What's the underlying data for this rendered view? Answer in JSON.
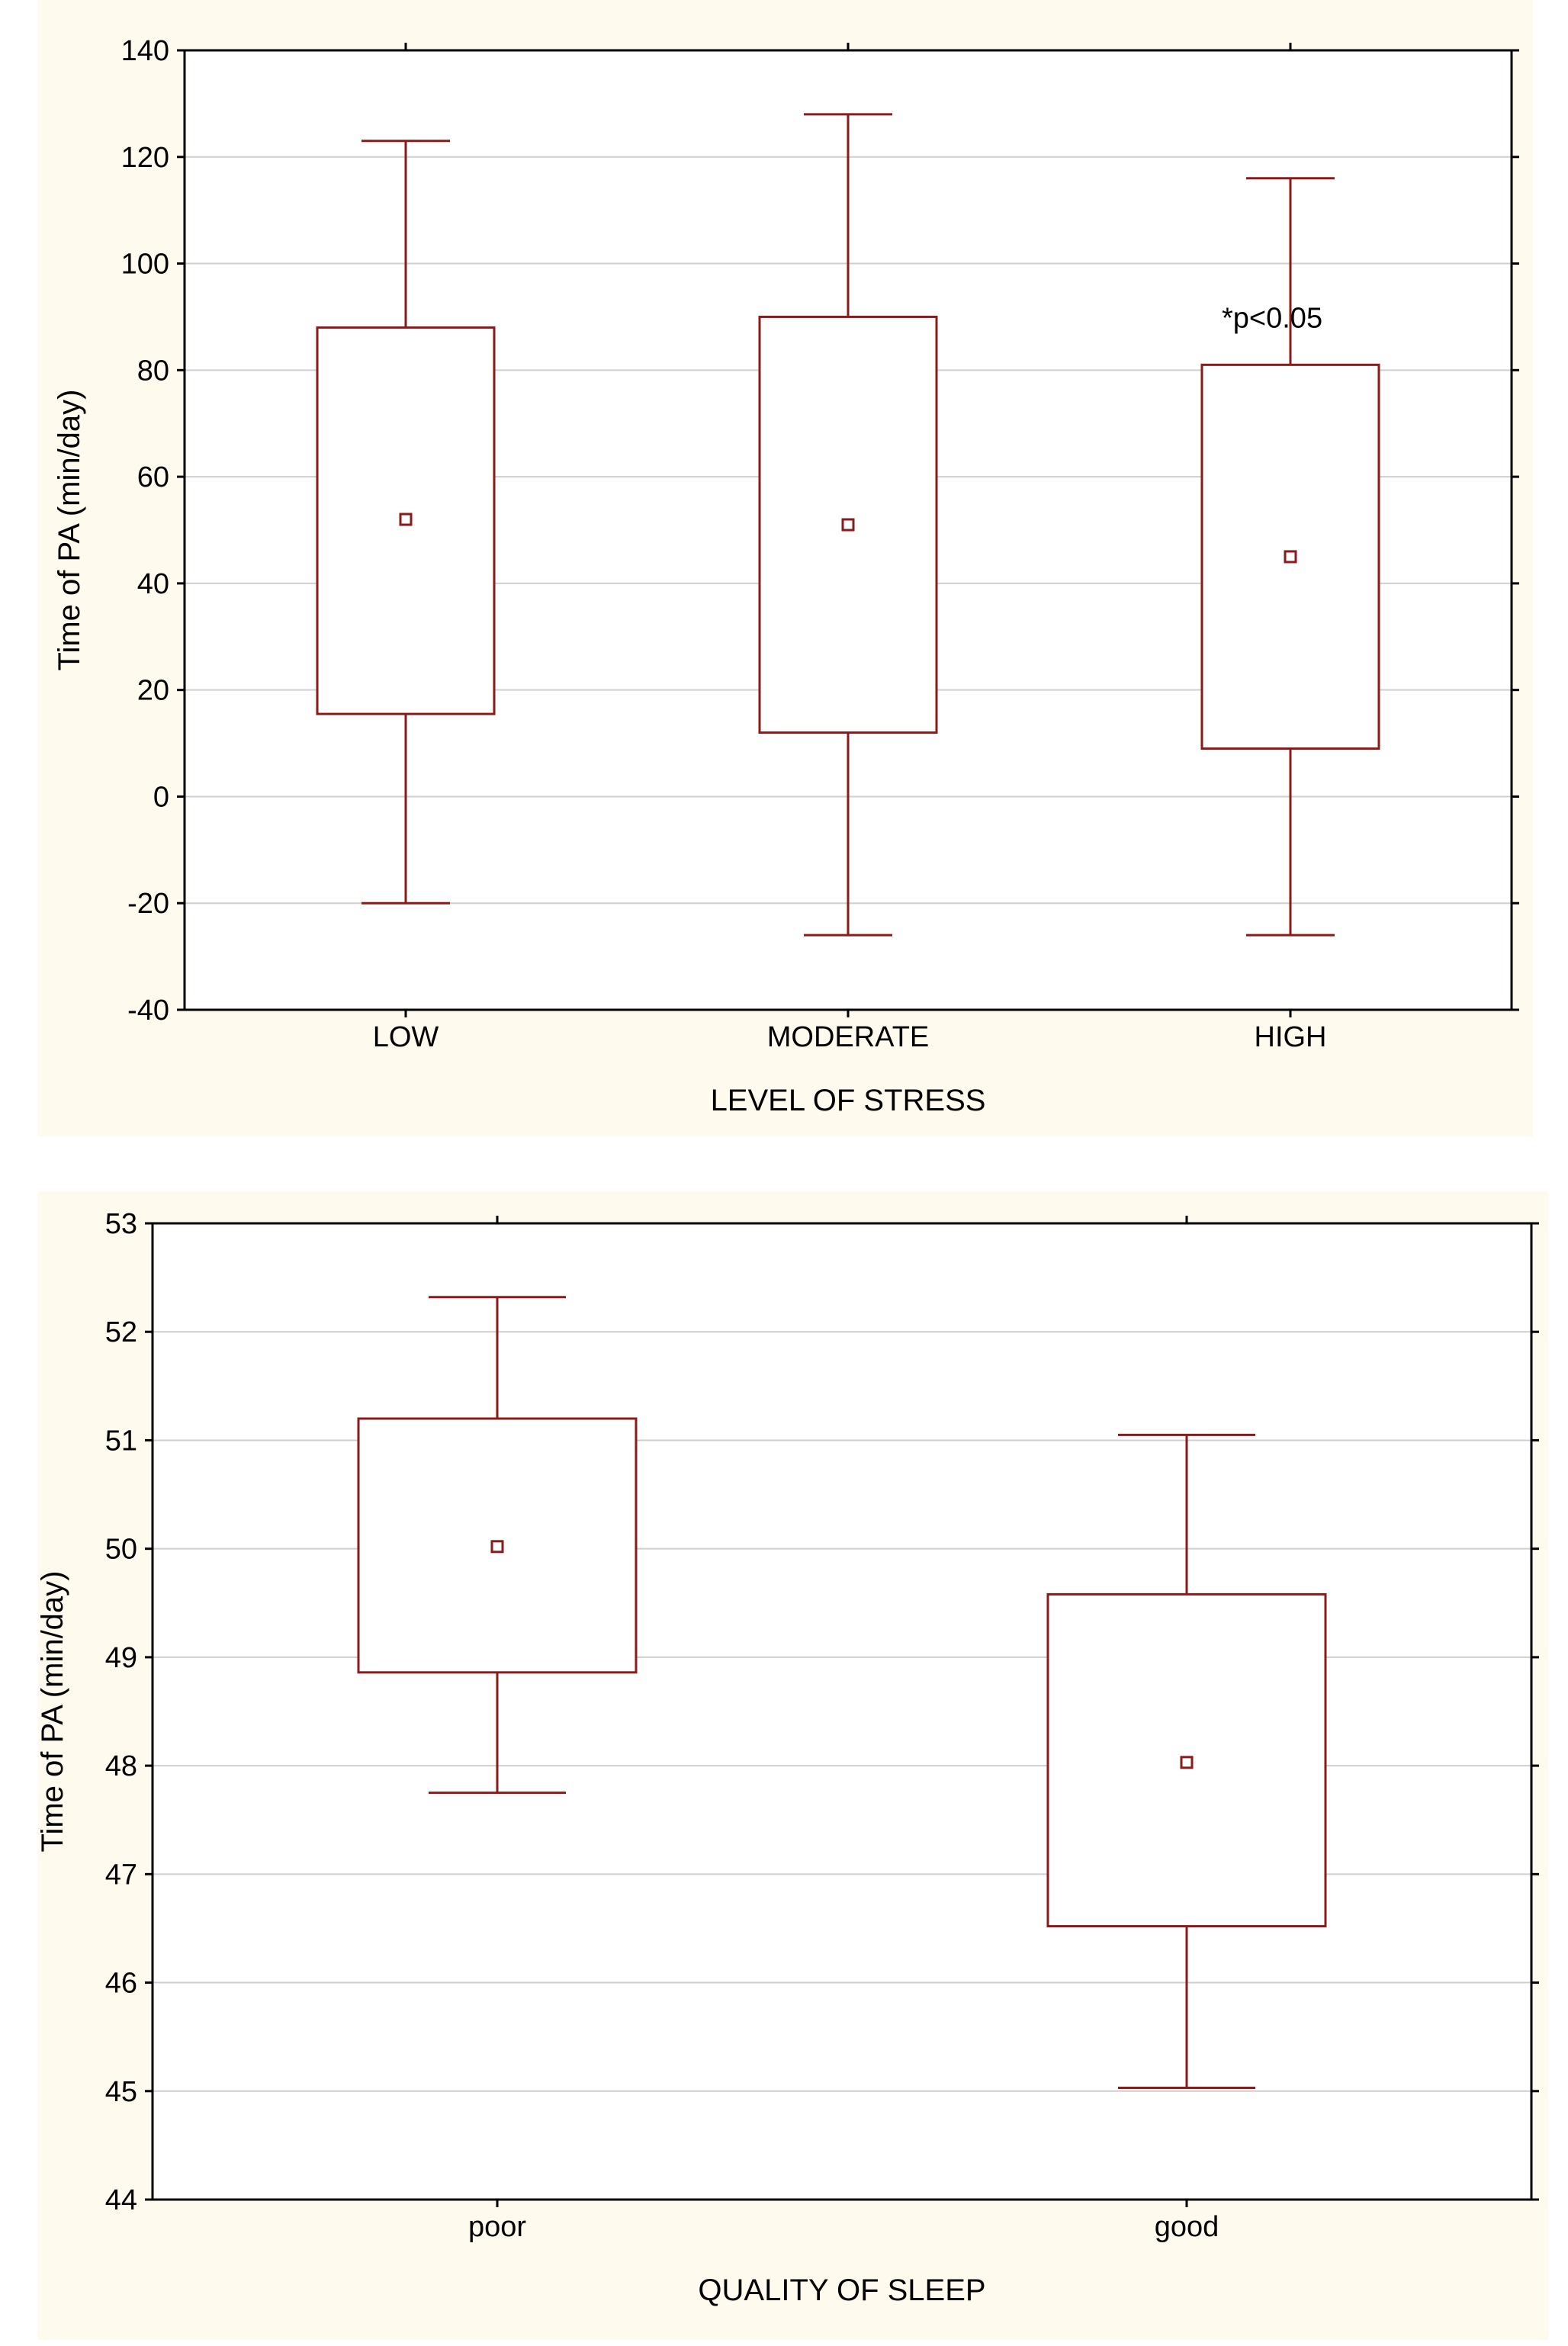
{
  "colors": {
    "panel_background": "#fffaee",
    "plot_background": "#ffffff",
    "gridline": "#cfcfcf",
    "axis": "#000000",
    "series": "#8b1a1a",
    "text": "#000000"
  },
  "chart_data": [
    {
      "type": "box",
      "title": "",
      "xlabel": "LEVEL OF STRESS",
      "ylabel": "Time of PA (min/day)",
      "ylim": [
        -40,
        140
      ],
      "yticks": [
        -40,
        -20,
        0,
        20,
        40,
        60,
        80,
        100,
        120,
        140
      ],
      "ytick_labels": [
        "-40",
        "-20",
        "0",
        "20",
        "40",
        "60",
        "80",
        "100",
        "120",
        "140"
      ],
      "grid": true,
      "categories": [
        "LOW",
        "MODERATE",
        "HIGH"
      ],
      "boxes": [
        {
          "category": "LOW",
          "whisker_low": -20,
          "box_low": 15.5,
          "center": 52,
          "box_high": 88,
          "whisker_high": 123
        },
        {
          "category": "MODERATE",
          "whisker_low": -26,
          "box_low": 12,
          "center": 51,
          "box_high": 90,
          "whisker_high": 128
        },
        {
          "category": "HIGH",
          "whisker_low": -26,
          "box_low": 9,
          "center": 45,
          "box_high": 81,
          "whisker_high": 116
        }
      ],
      "annotations": [
        {
          "text": "*p<0.05",
          "category": "HIGH",
          "y": 88
        }
      ]
    },
    {
      "type": "box",
      "title": "",
      "xlabel": "QUALITY OF SLEEP",
      "ylabel": "Time of PA (min/day)",
      "ylim": [
        44,
        53
      ],
      "yticks": [
        44,
        45,
        46,
        47,
        48,
        49,
        50,
        51,
        52,
        53
      ],
      "ytick_labels": [
        "44",
        "45",
        "46",
        "47",
        "48",
        "49",
        "50",
        "51",
        "52",
        "53"
      ],
      "grid": true,
      "categories": [
        "poor",
        "good"
      ],
      "boxes": [
        {
          "category": "poor",
          "whisker_low": 47.75,
          "box_low": 48.86,
          "center": 50.02,
          "box_high": 51.2,
          "whisker_high": 52.32
        },
        {
          "category": "good",
          "whisker_low": 45.03,
          "box_low": 46.52,
          "center": 48.03,
          "box_high": 49.58,
          "whisker_high": 51.05
        }
      ],
      "annotations": []
    }
  ]
}
